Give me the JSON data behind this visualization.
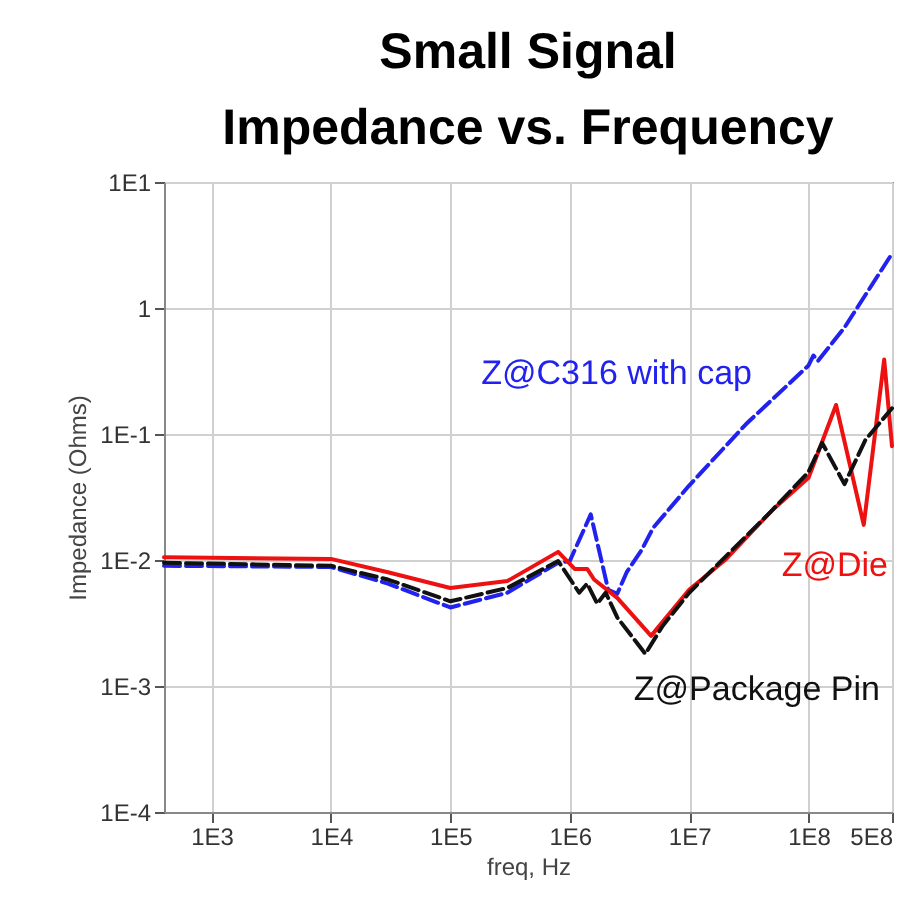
{
  "chart_data": {
    "type": "line",
    "title": [
      "Small Signal",
      "Impedance vs. Frequency"
    ],
    "xlabel": "freq, Hz",
    "ylabel": "Impedance (Ohms)",
    "log": "xy",
    "grid": true,
    "xlim": [
      400,
      500000000
    ],
    "ylim": [
      0.0001,
      10
    ],
    "xticks": [
      {
        "value": 1000,
        "label": "1E3"
      },
      {
        "value": 10000,
        "label": "1E4"
      },
      {
        "value": 100000,
        "label": "1E5"
      },
      {
        "value": 1000000,
        "label": "1E6"
      },
      {
        "value": 10000000,
        "label": "1E7"
      },
      {
        "value": 100000000,
        "label": "1E8"
      },
      {
        "value": 500000000,
        "label": "5E8"
      }
    ],
    "yticks": [
      {
        "value": 0.0001,
        "label": "1E-4"
      },
      {
        "value": 0.001,
        "label": "1E-3"
      },
      {
        "value": 0.01,
        "label": "1E-2"
      },
      {
        "value": 0.1,
        "label": "1E-1"
      },
      1,
      {
        "value": 10,
        "label": "1E1"
      }
    ],
    "series": [
      {
        "name": "Z@C316 with cap",
        "color": "#2222ee",
        "line_style": "dashed",
        "x": [
          400,
          10000,
          30000,
          100000,
          300000,
          800000,
          1000000,
          1500000,
          2100000,
          2500000,
          3000000,
          4000000,
          5000000,
          10000000,
          30000000,
          100000000,
          110000000,
          120000000,
          200000000,
          500000000
        ],
        "values": [
          0.009,
          0.0088,
          0.0065,
          0.0042,
          0.0055,
          0.0095,
          0.0098,
          0.023,
          0.0058,
          0.0054,
          0.008,
          0.012,
          0.018,
          0.039,
          0.12,
          0.35,
          0.42,
          0.38,
          0.7,
          2.7
        ]
      },
      {
        "name": "Z@Die",
        "color": "#ee1111",
        "line_style": "solid",
        "x": [
          400,
          10000,
          30000,
          100000,
          300000,
          800000,
          1100000,
          1400000,
          1600000,
          2500000,
          4800000,
          10000000,
          20000000,
          50000000,
          100000000,
          170000000,
          290000000,
          430000000,
          500000000
        ],
        "values": [
          0.0105,
          0.0102,
          0.008,
          0.006,
          0.0068,
          0.0116,
          0.0085,
          0.0085,
          0.007,
          0.005,
          0.0025,
          0.0058,
          0.01,
          0.025,
          0.045,
          0.17,
          0.019,
          0.39,
          0.08
        ]
      },
      {
        "name": "Z@Package Pin",
        "color": "#111111",
        "line_style": "dashed",
        "x": [
          400,
          10000,
          30000,
          100000,
          300000,
          800000,
          1200000,
          1400000,
          1700000,
          2000000,
          2500000,
          4300000,
          6000000,
          10000000,
          50000000,
          100000000,
          130000000,
          200000000,
          300000000,
          500000000
        ],
        "values": [
          0.0095,
          0.009,
          0.007,
          0.0047,
          0.006,
          0.0098,
          0.0055,
          0.0065,
          0.0045,
          0.0055,
          0.0035,
          0.0018,
          0.003,
          0.0055,
          0.025,
          0.05,
          0.085,
          0.04,
          0.09,
          0.16
        ]
      }
    ]
  }
}
